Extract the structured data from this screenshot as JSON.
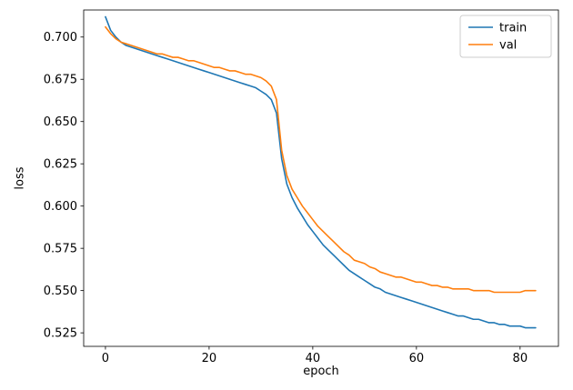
{
  "chart_data": {
    "type": "line",
    "title": "",
    "xlabel": "epoch",
    "ylabel": "loss",
    "xlim": [
      -4.2,
      87.4
    ],
    "ylim": [
      0.517,
      0.716
    ],
    "x_ticks": [
      0,
      20,
      40,
      60,
      80
    ],
    "y_ticks": [
      0.525,
      0.55,
      0.575,
      0.6,
      0.625,
      0.65,
      0.675,
      0.7
    ],
    "legend_position": "upper right",
    "grid": false,
    "series": [
      {
        "name": "train",
        "color": "#1f77b4",
        "x_start": 0,
        "x_step": 1,
        "values": [
          0.712,
          0.704,
          0.7,
          0.697,
          0.695,
          0.694,
          0.693,
          0.692,
          0.691,
          0.69,
          0.689,
          0.688,
          0.687,
          0.686,
          0.685,
          0.684,
          0.683,
          0.682,
          0.681,
          0.68,
          0.679,
          0.678,
          0.677,
          0.676,
          0.675,
          0.674,
          0.673,
          0.672,
          0.671,
          0.67,
          0.668,
          0.666,
          0.663,
          0.655,
          0.628,
          0.613,
          0.605,
          0.599,
          0.594,
          0.589,
          0.585,
          0.581,
          0.577,
          0.574,
          0.571,
          0.568,
          0.565,
          0.562,
          0.56,
          0.558,
          0.556,
          0.554,
          0.552,
          0.551,
          0.549,
          0.548,
          0.547,
          0.546,
          0.545,
          0.544,
          0.543,
          0.542,
          0.541,
          0.54,
          0.539,
          0.538,
          0.537,
          0.536,
          0.535,
          0.535,
          0.534,
          0.533,
          0.533,
          0.532,
          0.531,
          0.531,
          0.53,
          0.53,
          0.529,
          0.529,
          0.529,
          0.528,
          0.528,
          0.528
        ]
      },
      {
        "name": "val",
        "color": "#ff7f0e",
        "x_start": 0,
        "x_step": 1,
        "values": [
          0.706,
          0.702,
          0.699,
          0.697,
          0.696,
          0.695,
          0.694,
          0.693,
          0.692,
          0.691,
          0.69,
          0.69,
          0.689,
          0.688,
          0.688,
          0.687,
          0.686,
          0.686,
          0.685,
          0.684,
          0.683,
          0.682,
          0.682,
          0.681,
          0.68,
          0.68,
          0.679,
          0.678,
          0.678,
          0.677,
          0.676,
          0.674,
          0.671,
          0.663,
          0.633,
          0.618,
          0.61,
          0.605,
          0.6,
          0.596,
          0.592,
          0.588,
          0.585,
          0.582,
          0.579,
          0.576,
          0.573,
          0.571,
          0.568,
          0.567,
          0.566,
          0.564,
          0.563,
          0.561,
          0.56,
          0.559,
          0.558,
          0.558,
          0.557,
          0.556,
          0.555,
          0.555,
          0.554,
          0.553,
          0.553,
          0.552,
          0.552,
          0.551,
          0.551,
          0.551,
          0.551,
          0.55,
          0.55,
          0.55,
          0.55,
          0.549,
          0.549,
          0.549,
          0.549,
          0.549,
          0.549,
          0.55,
          0.55,
          0.55
        ]
      }
    ]
  }
}
